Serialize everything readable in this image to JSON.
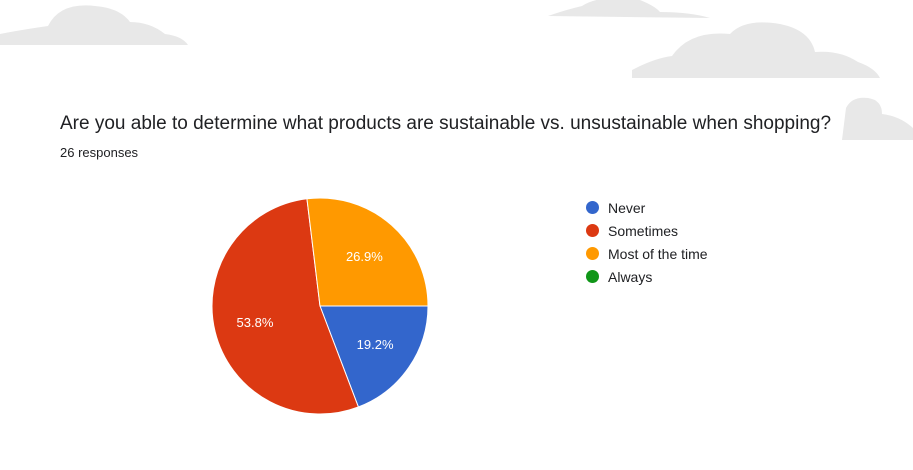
{
  "question": "Are you able to determine what products are sustainable vs. unsustainable when shopping?",
  "responses": "26 responses",
  "chart_data": {
    "type": "pie",
    "title": "Are you able to determine what products are sustainable vs. unsustainable when shopping?",
    "categories": [
      "Never",
      "Sometimes",
      "Most of the time",
      "Always"
    ],
    "values": [
      19.2,
      53.8,
      26.9,
      0
    ],
    "labels": [
      "19.2%",
      "53.8%",
      "26.9%",
      ""
    ],
    "colors": [
      "#3366cc",
      "#dc3912",
      "#ff9900",
      "#109618"
    ],
    "legend_position": "right"
  }
}
